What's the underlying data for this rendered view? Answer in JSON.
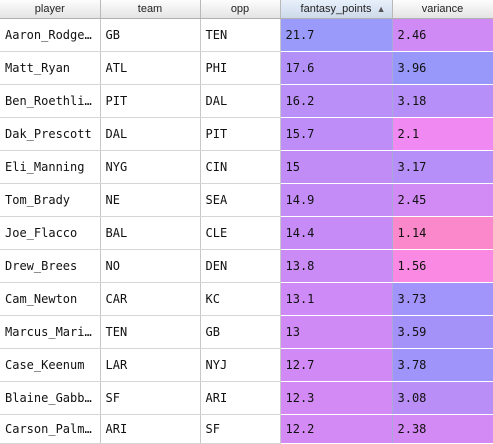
{
  "columns": [
    {
      "key": "player",
      "label": "player"
    },
    {
      "key": "team",
      "label": "team"
    },
    {
      "key": "opp",
      "label": "opp"
    },
    {
      "key": "fantasy_points",
      "label": "fantasy_points",
      "sorted": "ascending",
      "sort_icon": "sort-up-icon"
    },
    {
      "key": "variance",
      "label": "variance"
    }
  ],
  "rows": [
    {
      "player": "Aaron_Rodge…",
      "team": "GB",
      "opp": "TEN",
      "fantasy_points": "21.7",
      "variance": "2.46",
      "fp_color": "#9a9afa",
      "var_color": "#d08af6"
    },
    {
      "player": "Matt_Ryan",
      "team": "ATL",
      "opp": "PHI",
      "fantasy_points": "17.6",
      "variance": "3.96",
      "fp_color": "#b390f8",
      "var_color": "#9898fb"
    },
    {
      "player": "Ben_Roethli…",
      "team": "PIT",
      "opp": "DAL",
      "fantasy_points": "16.2",
      "variance": "3.18",
      "fp_color": "#ba8ff7",
      "var_color": "#b690f8"
    },
    {
      "player": "Dak_Prescott",
      "team": "DAL",
      "opp": "PIT",
      "fantasy_points": "15.7",
      "variance": "2.1",
      "fp_color": "#be8df7",
      "var_color": "#f08af2"
    },
    {
      "player": "Eli_Manning",
      "team": "NYG",
      "opp": "CIN",
      "fantasy_points": "15",
      "variance": "3.17",
      "fp_color": "#c28cf7",
      "var_color": "#b690f8"
    },
    {
      "player": "Tom_Brady",
      "team": "NE",
      "opp": "SEA",
      "fantasy_points": "14.9",
      "variance": "2.45",
      "fp_color": "#c38cf7",
      "var_color": "#d28af5"
    },
    {
      "player": "Joe_Flacco",
      "team": "BAL",
      "opp": "CLE",
      "fantasy_points": "14.4",
      "variance": "1.14",
      "fp_color": "#c68bf6",
      "var_color": "#fb88cb"
    },
    {
      "player": "Drew_Brees",
      "team": "NO",
      "opp": "DEN",
      "fantasy_points": "13.8",
      "variance": "1.56",
      "fp_color": "#ca8bf6",
      "var_color": "#f989e2"
    },
    {
      "player": "Cam_Newton",
      "team": "CAR",
      "opp": "KC",
      "fantasy_points": "13.1",
      "variance": "3.73",
      "fp_color": "#ce8af6",
      "var_color": "#a194fa"
    },
    {
      "player": "Marcus_Mari…",
      "team": "TEN",
      "opp": "GB",
      "fantasy_points": "13",
      "variance": "3.59",
      "fp_color": "#cf8af6",
      "var_color": "#a592f9"
    },
    {
      "player": "Case_Keenum",
      "team": "LAR",
      "opp": "NYJ",
      "fantasy_points": "12.7",
      "variance": "3.78",
      "fp_color": "#d18af5",
      "var_color": "#9f94fa"
    },
    {
      "player": "Blaine_Gabb…",
      "team": "SF",
      "opp": "ARI",
      "fantasy_points": "12.3",
      "variance": "3.08",
      "fp_color": "#d48af5",
      "var_color": "#b98ff7"
    },
    {
      "player": "Carson_Palm…",
      "team": "ARI",
      "opp": "SF",
      "fantasy_points": "12.2",
      "variance": "2.38",
      "fp_color": "#d48af5",
      "var_color": "#d48af5"
    }
  ]
}
